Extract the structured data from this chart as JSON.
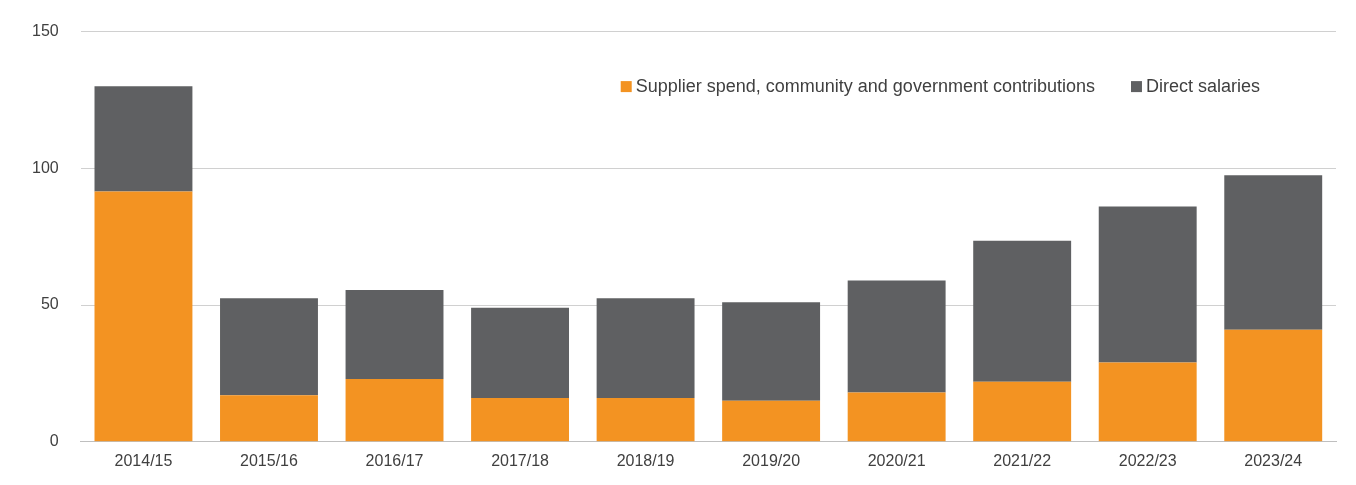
{
  "chart_data": {
    "type": "bar",
    "stacked": true,
    "categories": [
      "2014/15",
      "2015/16",
      "2016/17",
      "2017/18",
      "2018/19",
      "2019/20",
      "2020/21",
      "2021/22",
      "2022/23",
      "2023/24"
    ],
    "series": [
      {
        "name": "Supplier spend, community and government contributions",
        "color": "#f39322",
        "values": [
          91.5,
          17,
          23,
          16,
          16,
          15,
          18,
          22,
          29,
          41
        ]
      },
      {
        "name": "Direct salaries",
        "color": "#5f6062",
        "values": [
          38.5,
          35.5,
          32.5,
          33,
          36.5,
          36,
          41,
          51.5,
          57,
          56.5
        ]
      }
    ],
    "ylim": [
      0,
      150
    ],
    "yticks": [
      0,
      50,
      100,
      150
    ],
    "grid": "y",
    "legend": "top right"
  }
}
